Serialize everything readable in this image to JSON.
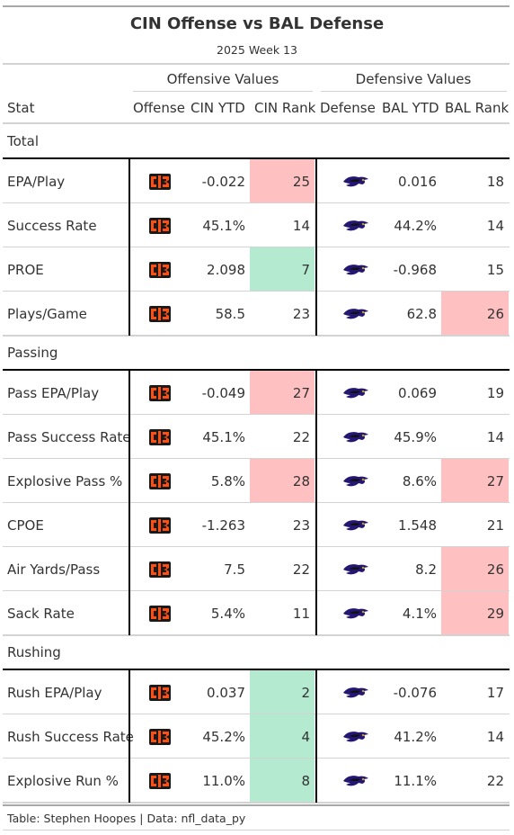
{
  "title": "CIN Offense vs BAL Defense",
  "subtitle": "2025 Week 13",
  "spanners": {
    "offense": "Offensive Values",
    "defense": "Defensive Values"
  },
  "columns": {
    "stat": "Stat",
    "offense": "Offense",
    "cin_ytd": "CIN YTD",
    "cin_rank": "CIN Rank",
    "defense": "Defense",
    "bal_ytd": "BAL YTD",
    "bal_rank": "BAL Rank"
  },
  "footer": "Table: Stephen Hoopes | Data: nfl_data_py",
  "icons": {
    "offense_logo": "bengals-logo-icon",
    "defense_logo": "ravens-logo-icon"
  },
  "colors": {
    "good": "#b3ead0",
    "bad": "#ffc0c1",
    "bengals_orange": "#fb4f14",
    "ravens_purple": "#241773"
  },
  "chart_data": {
    "type": "table",
    "groups": [
      {
        "name": "Total",
        "rows": [
          {
            "stat": "EPA/Play",
            "cin_ytd": "-0.022",
            "cin_rank": "25",
            "cin_flag": "bad",
            "bal_ytd": "0.016",
            "bal_rank": "18",
            "bal_flag": ""
          },
          {
            "stat": "Success Rate",
            "cin_ytd": "45.1%",
            "cin_rank": "14",
            "cin_flag": "",
            "bal_ytd": "44.2%",
            "bal_rank": "14",
            "bal_flag": ""
          },
          {
            "stat": "PROE",
            "cin_ytd": "2.098",
            "cin_rank": "7",
            "cin_flag": "good",
            "bal_ytd": "-0.968",
            "bal_rank": "15",
            "bal_flag": ""
          },
          {
            "stat": "Plays/Game",
            "cin_ytd": "58.5",
            "cin_rank": "23",
            "cin_flag": "",
            "bal_ytd": "62.8",
            "bal_rank": "26",
            "bal_flag": "bad"
          }
        ]
      },
      {
        "name": "Passing",
        "rows": [
          {
            "stat": "Pass EPA/Play",
            "cin_ytd": "-0.049",
            "cin_rank": "27",
            "cin_flag": "bad",
            "bal_ytd": "0.069",
            "bal_rank": "19",
            "bal_flag": ""
          },
          {
            "stat": "Pass Success Rate",
            "cin_ytd": "45.1%",
            "cin_rank": "22",
            "cin_flag": "",
            "bal_ytd": "45.9%",
            "bal_rank": "14",
            "bal_flag": ""
          },
          {
            "stat": "Explosive Pass %",
            "cin_ytd": "5.8%",
            "cin_rank": "28",
            "cin_flag": "bad",
            "bal_ytd": "8.6%",
            "bal_rank": "27",
            "bal_flag": "bad"
          },
          {
            "stat": "CPOE",
            "cin_ytd": "-1.263",
            "cin_rank": "23",
            "cin_flag": "",
            "bal_ytd": "1.548",
            "bal_rank": "21",
            "bal_flag": ""
          },
          {
            "stat": "Air Yards/Pass",
            "cin_ytd": "7.5",
            "cin_rank": "22",
            "cin_flag": "",
            "bal_ytd": "8.2",
            "bal_rank": "26",
            "bal_flag": "bad"
          },
          {
            "stat": "Sack Rate",
            "cin_ytd": "5.4%",
            "cin_rank": "11",
            "cin_flag": "",
            "bal_ytd": "4.1%",
            "bal_rank": "29",
            "bal_flag": "bad"
          }
        ]
      },
      {
        "name": "Rushing",
        "rows": [
          {
            "stat": "Rush EPA/Play",
            "cin_ytd": "0.037",
            "cin_rank": "2",
            "cin_flag": "good",
            "bal_ytd": "-0.076",
            "bal_rank": "17",
            "bal_flag": ""
          },
          {
            "stat": "Rush Success Rate",
            "cin_ytd": "45.2%",
            "cin_rank": "4",
            "cin_flag": "good",
            "bal_ytd": "41.2%",
            "bal_rank": "14",
            "bal_flag": ""
          },
          {
            "stat": "Explosive Run %",
            "cin_ytd": "11.0%",
            "cin_rank": "8",
            "cin_flag": "good",
            "bal_ytd": "11.1%",
            "bal_rank": "22",
            "bal_flag": ""
          }
        ]
      }
    ]
  }
}
